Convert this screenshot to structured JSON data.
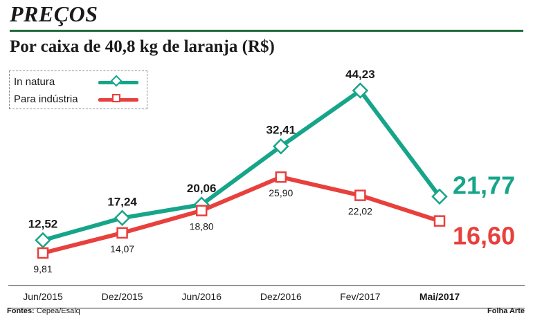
{
  "header": {
    "section_title": "PREÇOS",
    "subtitle": "Por caixa de 40,8 kg de laranja (R$)"
  },
  "legend": {
    "items": [
      {
        "label": "In natura",
        "color": "#17a589",
        "marker": "diamond"
      },
      {
        "label": "Para indústria",
        "color": "#e8403c",
        "marker": "square"
      }
    ]
  },
  "footer": {
    "sources_label": "Fontes:",
    "sources_text": "Cepea/Esalq",
    "credit": "Folha Arte"
  },
  "chart_data": {
    "type": "line",
    "categories": [
      "Jun/2015",
      "Dez/2015",
      "Jun/2016",
      "Dez/2016",
      "Fev/2017",
      "Mai/2017"
    ],
    "highlighted_category": "Mai/2017",
    "ylim": [
      8,
      46
    ],
    "grid": false,
    "legend_position": "top-left",
    "series": [
      {
        "name": "In natura",
        "color": "#17a589",
        "marker": "diamond",
        "values": [
          12.52,
          17.24,
          20.06,
          32.41,
          44.23,
          21.77
        ],
        "labels": [
          "12,52",
          "17,24",
          "20,06",
          "32,41",
          "44,23",
          "21,77"
        ]
      },
      {
        "name": "Para indústria",
        "color": "#e8403c",
        "marker": "square",
        "values": [
          9.81,
          14.07,
          18.8,
          25.9,
          22.02,
          16.6
        ],
        "labels": [
          "9,81",
          "14,07",
          "18,80",
          "25,90",
          "22,02",
          "16,60"
        ]
      }
    ]
  }
}
